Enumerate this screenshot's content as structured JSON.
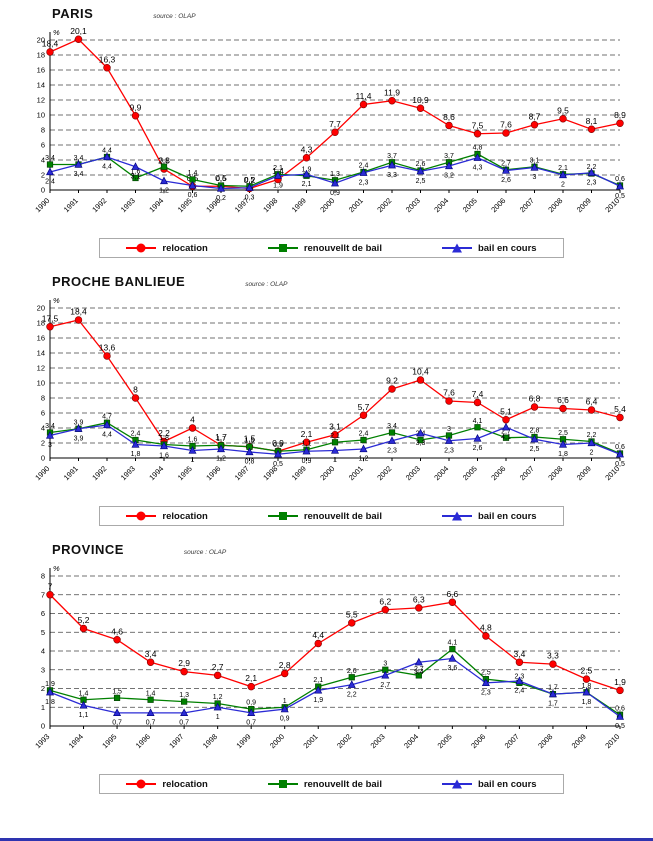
{
  "page": {
    "bottom_border_color": "#2e34b0"
  },
  "chart_data": [
    {
      "type": "line",
      "title": "PARIS",
      "source_label": "source : OLAP",
      "unit_label": "%",
      "ylim": [
        0,
        20
      ],
      "ytick_step": 2,
      "grid": "horizontal-dashed",
      "legend_position": "bottom",
      "x": [
        "1990",
        "1991",
        "1992",
        "1993",
        "1994",
        "1995",
        "1996",
        "1997",
        "1998",
        "1999",
        "2000",
        "2001",
        "2002",
        "2003",
        "2004",
        "2005",
        "2006",
        "2007",
        "2008",
        "2009",
        "2010"
      ],
      "series": [
        {
          "name": "relocation",
          "color": "#ff0000",
          "marker": "circle",
          "values": [
            18.4,
            20.1,
            16.3,
            9.9,
            2.8,
            0.5,
            0.5,
            0.2,
            1.4,
            4.3,
            7.7,
            11.4,
            11.9,
            10.9,
            8.6,
            7.5,
            7.6,
            8.7,
            9.5,
            8.1,
            8.9
          ]
        },
        {
          "name": "renouvellt de bail",
          "color": "#008000",
          "marker": "square",
          "values": [
            3.4,
            3.4,
            4.4,
            1.6,
            3.1,
            1.4,
            0.6,
            0.5,
            2.1,
            1.9,
            1.3,
            2.4,
            3.7,
            2.6,
            3.7,
            4.8,
            2.7,
            3.1,
            2.1,
            2.2,
            0.6
          ]
        },
        {
          "name": "bail en cours",
          "color": "#2b2bd5",
          "marker": "triangle",
          "values": [
            2.4,
            3.4,
            4.4,
            3.1,
            1.2,
            0.6,
            0.2,
            0.3,
            1.9,
            2.1,
            0.9,
            2.3,
            3.3,
            2.5,
            3.2,
            4.3,
            2.6,
            3.0,
            2.0,
            2.3,
            0.5
          ]
        }
      ]
    },
    {
      "type": "line",
      "title": "PROCHE BANLIEUE",
      "source_label": "source : OLAP",
      "unit_label": "%",
      "ylim": [
        0,
        20
      ],
      "ytick_step": 2,
      "grid": "horizontal-dashed",
      "legend_position": "bottom",
      "x": [
        "1990",
        "1991",
        "1992",
        "1993",
        "1994",
        "1995",
        "1996",
        "1997",
        "1998",
        "1999",
        "2000",
        "2001",
        "2002",
        "2003",
        "2004",
        "2005",
        "2006",
        "2007",
        "2008",
        "2009",
        "2010"
      ],
      "series": [
        {
          "name": "relocation",
          "color": "#ff0000",
          "marker": "circle",
          "values": [
            17.5,
            18.4,
            13.6,
            8,
            2.2,
            4,
            1.7,
            1.5,
            0.9,
            2.1,
            3.1,
            5.7,
            9.2,
            10.4,
            7.6,
            7.4,
            5.1,
            6.8,
            6.6,
            6.4,
            5.4
          ]
        },
        {
          "name": "renouvellt de bail",
          "color": "#008000",
          "marker": "square",
          "values": [
            3.4,
            3.9,
            4.7,
            2.4,
            1.8,
            1.6,
            1.7,
            1.5,
            0.9,
            1.1,
            2.1,
            2.4,
            3.4,
            2.4,
            3.0,
            4.1,
            2.7,
            2.8,
            2.5,
            2.2,
            0.6
          ]
        },
        {
          "name": "bail en cours",
          "color": "#2b2bd5",
          "marker": "triangle",
          "values": [
            3.0,
            3.9,
            4.4,
            1.8,
            1.6,
            1.0,
            1.2,
            0.8,
            0.5,
            0.9,
            1.0,
            1.2,
            2.3,
            3.3,
            2.3,
            2.6,
            4.1,
            2.5,
            1.8,
            2.0,
            0.5
          ]
        }
      ]
    },
    {
      "type": "line",
      "title": "PROVINCE",
      "source_label": "source : OLAP",
      "unit_label": "%",
      "ylim": [
        0,
        8
      ],
      "ytick_step": 1,
      "grid": "horizontal-dashed",
      "legend_position": "bottom",
      "x": [
        "1993",
        "1994",
        "1995",
        "1996",
        "1997",
        "1998",
        "1999",
        "2000",
        "2001",
        "2002",
        "2003",
        "2004",
        "2005",
        "2006",
        "2007",
        "2008",
        "2009",
        "2010"
      ],
      "series": [
        {
          "name": "relocation",
          "color": "#ff0000",
          "marker": "circle",
          "values": [
            7,
            5.2,
            4.6,
            3.4,
            2.9,
            2.7,
            2.1,
            2.8,
            4.4,
            5.5,
            6.2,
            6.3,
            6.6,
            4.8,
            3.4,
            3.3,
            2.5,
            1.9
          ]
        },
        {
          "name": "renouvellt de bail",
          "color": "#008000",
          "marker": "square",
          "values": [
            1.9,
            1.4,
            1.5,
            1.4,
            1.3,
            1.2,
            0.9,
            1.0,
            2.1,
            2.6,
            3.0,
            2.7,
            4.1,
            2.5,
            2.3,
            1.7,
            1.8,
            0.6
          ]
        },
        {
          "name": "bail en cours",
          "color": "#2b2bd5",
          "marker": "triangle",
          "values": [
            1.8,
            1.1,
            0.7,
            0.7,
            0.7,
            1.0,
            0.7,
            0.9,
            1.9,
            2.2,
            2.7,
            3.4,
            3.6,
            2.3,
            2.4,
            1.7,
            1.8,
            0.5
          ]
        }
      ]
    }
  ]
}
